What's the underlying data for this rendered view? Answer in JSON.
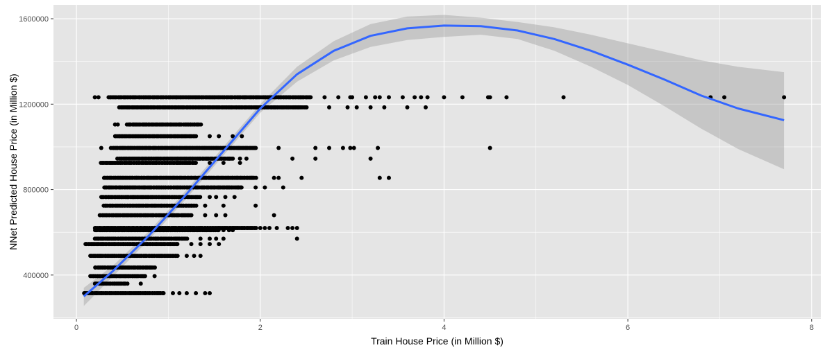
{
  "chart_data": {
    "type": "scatter",
    "title": "",
    "xlabel": "Train House Price (in Million $)",
    "ylabel": "NNet Predicted House Price (in Million $)",
    "xlim": [
      -0.25,
      8.1
    ],
    "ylim": [
      195000,
      1665000
    ],
    "x_ticks": [
      0,
      2,
      4,
      6,
      8
    ],
    "x_tick_labels": [
      "0",
      "2",
      "4",
      "6",
      "8"
    ],
    "y_ticks": [
      400000,
      800000,
      1200000,
      1600000
    ],
    "y_tick_labels": [
      "400000",
      "800000",
      "1200000",
      "1600000"
    ],
    "grid": true,
    "colors": {
      "panel_background": "#e5e5e5",
      "grid_major": "#ffffff",
      "points": "#000000",
      "smooth_line": "#3366ff",
      "confidence_band": "#999999"
    },
    "scatter_rows": [
      {
        "y": 1232000,
        "x_min": 0.35,
        "x_max": 2.55,
        "sparse_x": [
          0.2,
          0.24,
          2.7,
          2.85,
          2.98,
          3.0,
          3.15,
          3.25,
          3.3,
          3.4,
          3.55,
          3.68,
          3.75,
          3.82,
          4.0,
          4.2,
          4.48,
          4.5,
          4.68,
          5.3,
          6.9,
          7.05,
          7.7
        ]
      },
      {
        "y": 1185000,
        "x_min": 0.47,
        "x_max": 2.5,
        "sparse_x": [
          2.75,
          2.95,
          3.05,
          3.2,
          3.35,
          3.6,
          3.8
        ]
      },
      {
        "y": 1105000,
        "x_min": 0.55,
        "x_max": 1.35,
        "sparse_x": [
          0.42,
          0.45
        ]
      },
      {
        "y": 1050000,
        "x_min": 0.42,
        "x_max": 1.3,
        "sparse_x": [
          1.45,
          1.55,
          1.7,
          1.8
        ]
      },
      {
        "y": 995000,
        "x_min": 0.38,
        "x_max": 1.95,
        "sparse_x": [
          0.27,
          2.2,
          2.6,
          2.75,
          2.9,
          2.98,
          3.02,
          3.28,
          4.5
        ]
      },
      {
        "y": 945000,
        "x_min": 0.45,
        "x_max": 1.7,
        "sparse_x": [
          1.78,
          1.85,
          2.35,
          2.6,
          3.2
        ]
      },
      {
        "y": 925000,
        "x_min": 0.27,
        "x_max": 1.3,
        "sparse_x": [
          1.45,
          1.6,
          1.78
        ]
      },
      {
        "y": 855000,
        "x_min": 0.3,
        "x_max": 1.95,
        "sparse_x": [
          2.15,
          2.2,
          2.45,
          3.3,
          3.4
        ]
      },
      {
        "y": 810000,
        "x_min": 0.3,
        "x_max": 1.8,
        "sparse_x": [
          1.95,
          2.05,
          2.25
        ]
      },
      {
        "y": 765000,
        "x_min": 0.27,
        "x_max": 1.35,
        "sparse_x": [
          1.45,
          1.52,
          1.62,
          1.72
        ]
      },
      {
        "y": 725000,
        "x_min": 0.3,
        "x_max": 1.3,
        "sparse_x": [
          1.4,
          1.6,
          1.95
        ]
      },
      {
        "y": 680000,
        "x_min": 0.25,
        "x_max": 1.25,
        "sparse_x": [
          1.4,
          1.52,
          1.62,
          2.15
        ]
      },
      {
        "y": 620000,
        "x_min": 0.2,
        "x_max": 1.95,
        "sparse_x": [
          2.0,
          2.05,
          2.1,
          2.18,
          2.3,
          2.35,
          2.4
        ]
      },
      {
        "y": 610000,
        "x_min": 0.2,
        "x_max": 1.55,
        "sparse_x": [
          1.6,
          1.66,
          1.7
        ]
      },
      {
        "y": 570000,
        "x_min": 0.2,
        "x_max": 1.2,
        "sparse_x": [
          1.35,
          1.45,
          1.52,
          1.6,
          2.4
        ]
      },
      {
        "y": 545000,
        "x_min": 0.1,
        "x_max": 1.1,
        "sparse_x": [
          1.25,
          1.35,
          1.45,
          1.55
        ]
      },
      {
        "y": 490000,
        "x_min": 0.15,
        "x_max": 1.1,
        "sparse_x": [
          1.2,
          1.28,
          1.35
        ]
      },
      {
        "y": 435000,
        "x_min": 0.2,
        "x_max": 0.85,
        "sparse_x": []
      },
      {
        "y": 395000,
        "x_min": 0.15,
        "x_max": 0.75,
        "sparse_x": [
          0.85
        ]
      },
      {
        "y": 360000,
        "x_min": 0.2,
        "x_max": 0.55,
        "sparse_x": [
          0.7
        ]
      },
      {
        "y": 315000,
        "x_min": 0.08,
        "x_max": 0.95,
        "sparse_x": [
          1.05,
          1.12,
          1.2,
          1.3,
          1.4,
          1.45
        ]
      }
    ],
    "smooth_line": {
      "x": [
        0.08,
        0.4,
        0.8,
        1.2,
        1.6,
        2.0,
        2.4,
        2.8,
        3.2,
        3.6,
        4.0,
        4.4,
        4.8,
        5.2,
        5.6,
        6.0,
        6.4,
        6.8,
        7.2,
        7.7
      ],
      "y": [
        300000,
        420000,
        590000,
        780000,
        980000,
        1180000,
        1340000,
        1450000,
        1520000,
        1555000,
        1568000,
        1565000,
        1545000,
        1505000,
        1450000,
        1385000,
        1315000,
        1240000,
        1180000,
        1125000
      ],
      "ci_upper": [
        340000,
        445000,
        610000,
        800000,
        1000000,
        1200000,
        1375000,
        1495000,
        1575000,
        1610000,
        1618000,
        1605000,
        1585000,
        1560000,
        1525000,
        1485000,
        1445000,
        1405000,
        1375000,
        1350000
      ],
      "ci_lower": [
        255000,
        395000,
        570000,
        760000,
        960000,
        1160000,
        1305000,
        1405000,
        1468000,
        1500000,
        1515000,
        1525000,
        1505000,
        1450000,
        1375000,
        1290000,
        1190000,
        1085000,
        990000,
        895000
      ]
    }
  }
}
